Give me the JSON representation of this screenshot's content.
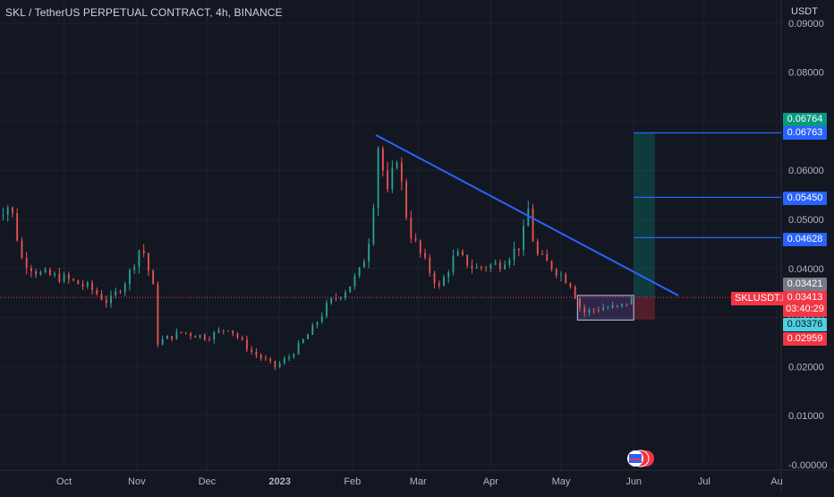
{
  "header": {
    "title": "SKL / TetherUS PERPETUAL CONTRACT, 4h, BINANCE",
    "currency": "USDT"
  },
  "colors": {
    "background": "#131722",
    "up": "#26a69a",
    "down": "#ef5350",
    "trendline": "#2962ff",
    "grid": "#1e222d",
    "text": "#d1d4dc"
  },
  "chart_data": {
    "type": "candlestick",
    "ylim": [
      -0.001,
      0.092
    ],
    "y_ticks": [
      "0.09000",
      "0.08000",
      "0.07000",
      "0.06000",
      "0.05000",
      "0.04000",
      "0.03000",
      "0.02000",
      "0.01000",
      "-0.00000"
    ],
    "y_tick_values": [
      0.09,
      0.08,
      0.07,
      0.06,
      0.05,
      0.04,
      0.03,
      0.02,
      0.01,
      0.0
    ],
    "x_ticks": [
      "Oct",
      "Nov",
      "Dec",
      "2023",
      "Feb",
      "Mar",
      "Apr",
      "May",
      "Jun",
      "Jul",
      "Au"
    ],
    "x_tick_dates": [
      "2022-10-01",
      "2022-11-01",
      "2022-12-01",
      "2023-01-01",
      "2023-02-01",
      "2023-03-01",
      "2023-04-01",
      "2023-05-01",
      "2023-06-01",
      "2023-07-01",
      "2023-08-01"
    ],
    "x_range": [
      "2022-09-01",
      "2023-08-01"
    ],
    "price_path": [
      {
        "date": "2022-09-01",
        "price": 0.051
      },
      {
        "date": "2022-09-08",
        "price": 0.053
      },
      {
        "date": "2022-09-13",
        "price": 0.042
      },
      {
        "date": "2022-09-20",
        "price": 0.039
      },
      {
        "date": "2022-10-01",
        "price": 0.038
      },
      {
        "date": "2022-10-12",
        "price": 0.036
      },
      {
        "date": "2022-10-20",
        "price": 0.033
      },
      {
        "date": "2022-10-28",
        "price": 0.038
      },
      {
        "date": "2022-11-03",
        "price": 0.045
      },
      {
        "date": "2022-11-08",
        "price": 0.036
      },
      {
        "date": "2022-11-10",
        "price": 0.025
      },
      {
        "date": "2022-11-20",
        "price": 0.027
      },
      {
        "date": "2022-12-01",
        "price": 0.026
      },
      {
        "date": "2022-12-10",
        "price": 0.028
      },
      {
        "date": "2022-12-20",
        "price": 0.023
      },
      {
        "date": "2022-12-30",
        "price": 0.02
      },
      {
        "date": "2023-01-05",
        "price": 0.022
      },
      {
        "date": "2023-01-14",
        "price": 0.027
      },
      {
        "date": "2023-01-22",
        "price": 0.033
      },
      {
        "date": "2023-01-30",
        "price": 0.036
      },
      {
        "date": "2023-02-05",
        "price": 0.04
      },
      {
        "date": "2023-02-09",
        "price": 0.048
      },
      {
        "date": "2023-02-12",
        "price": 0.065
      },
      {
        "date": "2023-02-16",
        "price": 0.055
      },
      {
        "date": "2023-02-20",
        "price": 0.063
      },
      {
        "date": "2023-02-25",
        "price": 0.048
      },
      {
        "date": "2023-03-03",
        "price": 0.042
      },
      {
        "date": "2023-03-10",
        "price": 0.036
      },
      {
        "date": "2023-03-17",
        "price": 0.043
      },
      {
        "date": "2023-03-25",
        "price": 0.04
      },
      {
        "date": "2023-04-05",
        "price": 0.041
      },
      {
        "date": "2023-04-14",
        "price": 0.045
      },
      {
        "date": "2023-04-17",
        "price": 0.052
      },
      {
        "date": "2023-04-20",
        "price": 0.043
      },
      {
        "date": "2023-04-28",
        "price": 0.04
      },
      {
        "date": "2023-05-05",
        "price": 0.037
      },
      {
        "date": "2023-05-10",
        "price": 0.031
      },
      {
        "date": "2023-05-18",
        "price": 0.032
      },
      {
        "date": "2023-05-26",
        "price": 0.032
      },
      {
        "date": "2023-06-01",
        "price": 0.0341
      }
    ],
    "trendline": {
      "start": {
        "date": "2023-02-11",
        "price": 0.0672
      },
      "end": {
        "date": "2023-06-20",
        "price": 0.0345
      }
    },
    "price_lines": [
      {
        "value": 0.06763,
        "label": "0.06763",
        "start": "2023-06-01"
      },
      {
        "value": 0.0545,
        "label": "0.05450",
        "start": "2023-06-01"
      },
      {
        "value": 0.04628,
        "label": "0.04628",
        "start": "2023-06-01"
      }
    ],
    "consolidation_box": {
      "start": "2023-05-08",
      "end": "2023-06-01",
      "top": 0.0345,
      "bottom": 0.0295
    },
    "long_position": {
      "start": "2023-06-01",
      "end": "2023-06-10",
      "target": 0.06764,
      "entry": 0.03413,
      "stop": 0.02959
    },
    "current_price_line": 0.03413,
    "labels": {
      "target_price": "0.06764",
      "level_1": "0.06763",
      "level_2": "0.05450",
      "level_3": "0.04628",
      "last_high": "0.03421",
      "symbol": "SKLUSDT.P",
      "price": "0.03413",
      "countdown": "03:40:29",
      "last_low": "0.03376",
      "stop_price": "0.02959"
    }
  }
}
